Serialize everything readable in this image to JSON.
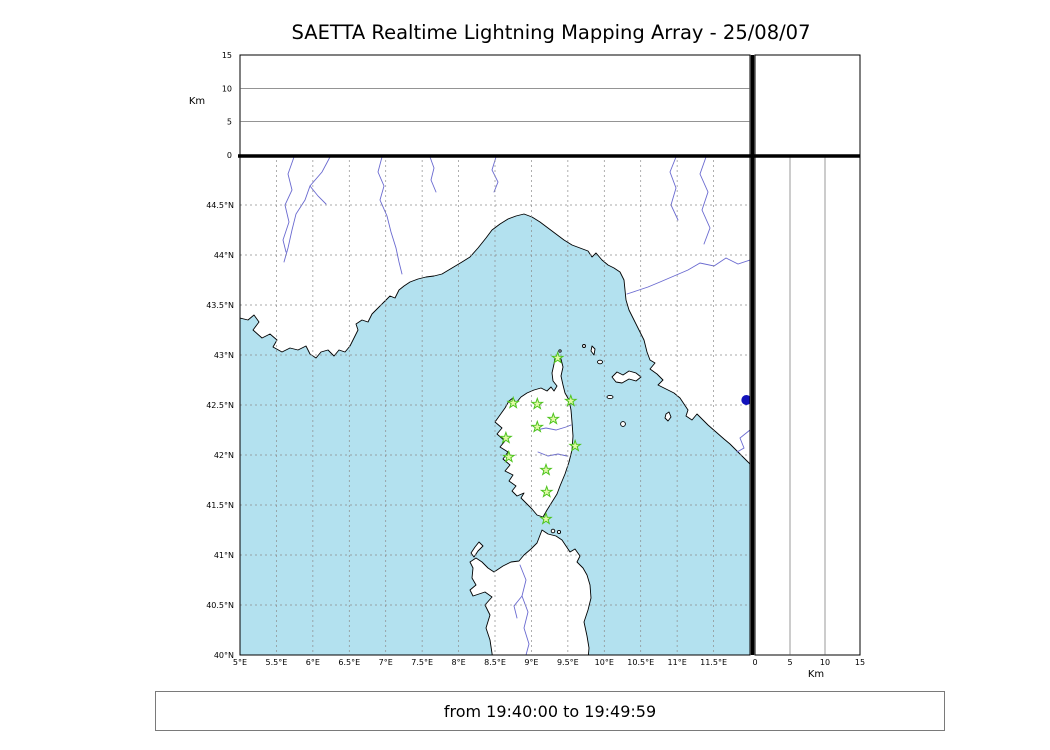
{
  "title": "SAETTA Realtime Lightning Mapping Array - 25/08/07",
  "status": {
    "text": "from 19:40:00 to 19:49:59"
  },
  "axes": {
    "altitude": {
      "unit_label": "Km",
      "ticks": [
        0,
        5,
        10,
        15
      ],
      "max_km": 15
    },
    "latitude": {
      "min_deg": 40,
      "max_deg": 45,
      "tick_step_deg": 0.5,
      "tick_labels": [
        "40°N",
        "40.5°N",
        "41°N",
        "41.5°N",
        "42°N",
        "42.5°N",
        "43°N",
        "43.5°N",
        "44°N",
        "44.5°N"
      ]
    },
    "longitude": {
      "min_deg": 5,
      "max_deg": 12,
      "tick_step_deg": 0.5,
      "tick_labels": [
        "5°E",
        "5.5°E",
        "6°E",
        "6.5°E",
        "7°E",
        "7.5°E",
        "8°E",
        "8.5°E",
        "9°E",
        "9.5°E",
        "10°E",
        "10.5°E",
        "11°E",
        "11.5°E"
      ]
    }
  },
  "colors": {
    "sea": "#b3e1ef",
    "land": "#ffffff",
    "coast": "#000000",
    "grid": "#8c8c8c",
    "river": "#6a6ad0",
    "station_stroke": "#4ec41e",
    "station_fill": "#e2f9a8",
    "point": "#1212bb"
  },
  "stations": [
    {
      "lon": 9.36,
      "lat": 42.97
    },
    {
      "lon": 8.75,
      "lat": 42.52
    },
    {
      "lon": 9.08,
      "lat": 42.51
    },
    {
      "lon": 9.54,
      "lat": 42.54
    },
    {
      "lon": 9.3,
      "lat": 42.36
    },
    {
      "lon": 9.08,
      "lat": 42.28
    },
    {
      "lon": 8.65,
      "lat": 42.17
    },
    {
      "lon": 9.6,
      "lat": 42.09
    },
    {
      "lon": 8.69,
      "lat": 41.98
    },
    {
      "lon": 9.2,
      "lat": 41.85
    },
    {
      "lon": 9.21,
      "lat": 41.63
    },
    {
      "lon": 9.2,
      "lat": 41.36
    }
  ],
  "points": [
    {
      "lon": 11.95,
      "lat": 42.55
    }
  ]
}
